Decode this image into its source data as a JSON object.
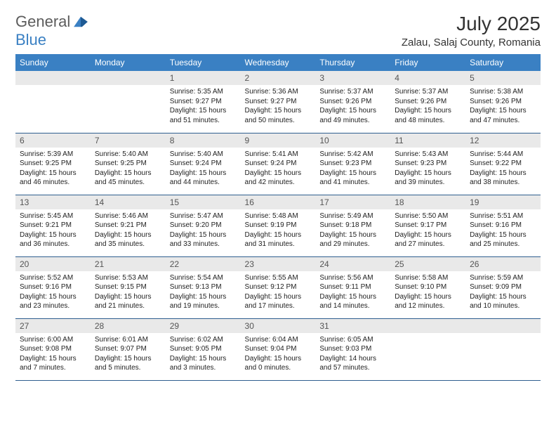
{
  "logo": {
    "text1": "General",
    "text2": "Blue"
  },
  "title": "July 2025",
  "location": "Zalau, Salaj County, Romania",
  "colors": {
    "header_bg": "#3a80c3",
    "header_text": "#ffffff",
    "daynum_bg": "#e9e9e9",
    "row_border": "#2f5f8f",
    "logo_gray": "#5c5c5c",
    "logo_blue": "#3a80c3"
  },
  "weekdays": [
    "Sunday",
    "Monday",
    "Tuesday",
    "Wednesday",
    "Thursday",
    "Friday",
    "Saturday"
  ],
  "weeks": [
    [
      null,
      null,
      {
        "n": "1",
        "sr": "5:35 AM",
        "ss": "9:27 PM",
        "dl": "15 hours and 51 minutes."
      },
      {
        "n": "2",
        "sr": "5:36 AM",
        "ss": "9:27 PM",
        "dl": "15 hours and 50 minutes."
      },
      {
        "n": "3",
        "sr": "5:37 AM",
        "ss": "9:26 PM",
        "dl": "15 hours and 49 minutes."
      },
      {
        "n": "4",
        "sr": "5:37 AM",
        "ss": "9:26 PM",
        "dl": "15 hours and 48 minutes."
      },
      {
        "n": "5",
        "sr": "5:38 AM",
        "ss": "9:26 PM",
        "dl": "15 hours and 47 minutes."
      }
    ],
    [
      {
        "n": "6",
        "sr": "5:39 AM",
        "ss": "9:25 PM",
        "dl": "15 hours and 46 minutes."
      },
      {
        "n": "7",
        "sr": "5:40 AM",
        "ss": "9:25 PM",
        "dl": "15 hours and 45 minutes."
      },
      {
        "n": "8",
        "sr": "5:40 AM",
        "ss": "9:24 PM",
        "dl": "15 hours and 44 minutes."
      },
      {
        "n": "9",
        "sr": "5:41 AM",
        "ss": "9:24 PM",
        "dl": "15 hours and 42 minutes."
      },
      {
        "n": "10",
        "sr": "5:42 AM",
        "ss": "9:23 PM",
        "dl": "15 hours and 41 minutes."
      },
      {
        "n": "11",
        "sr": "5:43 AM",
        "ss": "9:23 PM",
        "dl": "15 hours and 39 minutes."
      },
      {
        "n": "12",
        "sr": "5:44 AM",
        "ss": "9:22 PM",
        "dl": "15 hours and 38 minutes."
      }
    ],
    [
      {
        "n": "13",
        "sr": "5:45 AM",
        "ss": "9:21 PM",
        "dl": "15 hours and 36 minutes."
      },
      {
        "n": "14",
        "sr": "5:46 AM",
        "ss": "9:21 PM",
        "dl": "15 hours and 35 minutes."
      },
      {
        "n": "15",
        "sr": "5:47 AM",
        "ss": "9:20 PM",
        "dl": "15 hours and 33 minutes."
      },
      {
        "n": "16",
        "sr": "5:48 AM",
        "ss": "9:19 PM",
        "dl": "15 hours and 31 minutes."
      },
      {
        "n": "17",
        "sr": "5:49 AM",
        "ss": "9:18 PM",
        "dl": "15 hours and 29 minutes."
      },
      {
        "n": "18",
        "sr": "5:50 AM",
        "ss": "9:17 PM",
        "dl": "15 hours and 27 minutes."
      },
      {
        "n": "19",
        "sr": "5:51 AM",
        "ss": "9:16 PM",
        "dl": "15 hours and 25 minutes."
      }
    ],
    [
      {
        "n": "20",
        "sr": "5:52 AM",
        "ss": "9:16 PM",
        "dl": "15 hours and 23 minutes."
      },
      {
        "n": "21",
        "sr": "5:53 AM",
        "ss": "9:15 PM",
        "dl": "15 hours and 21 minutes."
      },
      {
        "n": "22",
        "sr": "5:54 AM",
        "ss": "9:13 PM",
        "dl": "15 hours and 19 minutes."
      },
      {
        "n": "23",
        "sr": "5:55 AM",
        "ss": "9:12 PM",
        "dl": "15 hours and 17 minutes."
      },
      {
        "n": "24",
        "sr": "5:56 AM",
        "ss": "9:11 PM",
        "dl": "15 hours and 14 minutes."
      },
      {
        "n": "25",
        "sr": "5:58 AM",
        "ss": "9:10 PM",
        "dl": "15 hours and 12 minutes."
      },
      {
        "n": "26",
        "sr": "5:59 AM",
        "ss": "9:09 PM",
        "dl": "15 hours and 10 minutes."
      }
    ],
    [
      {
        "n": "27",
        "sr": "6:00 AM",
        "ss": "9:08 PM",
        "dl": "15 hours and 7 minutes."
      },
      {
        "n": "28",
        "sr": "6:01 AM",
        "ss": "9:07 PM",
        "dl": "15 hours and 5 minutes."
      },
      {
        "n": "29",
        "sr": "6:02 AM",
        "ss": "9:05 PM",
        "dl": "15 hours and 3 minutes."
      },
      {
        "n": "30",
        "sr": "6:04 AM",
        "ss": "9:04 PM",
        "dl": "15 hours and 0 minutes."
      },
      {
        "n": "31",
        "sr": "6:05 AM",
        "ss": "9:03 PM",
        "dl": "14 hours and 57 minutes."
      },
      null,
      null
    ]
  ],
  "labels": {
    "sunrise": "Sunrise:",
    "sunset": "Sunset:",
    "daylight": "Daylight:"
  }
}
